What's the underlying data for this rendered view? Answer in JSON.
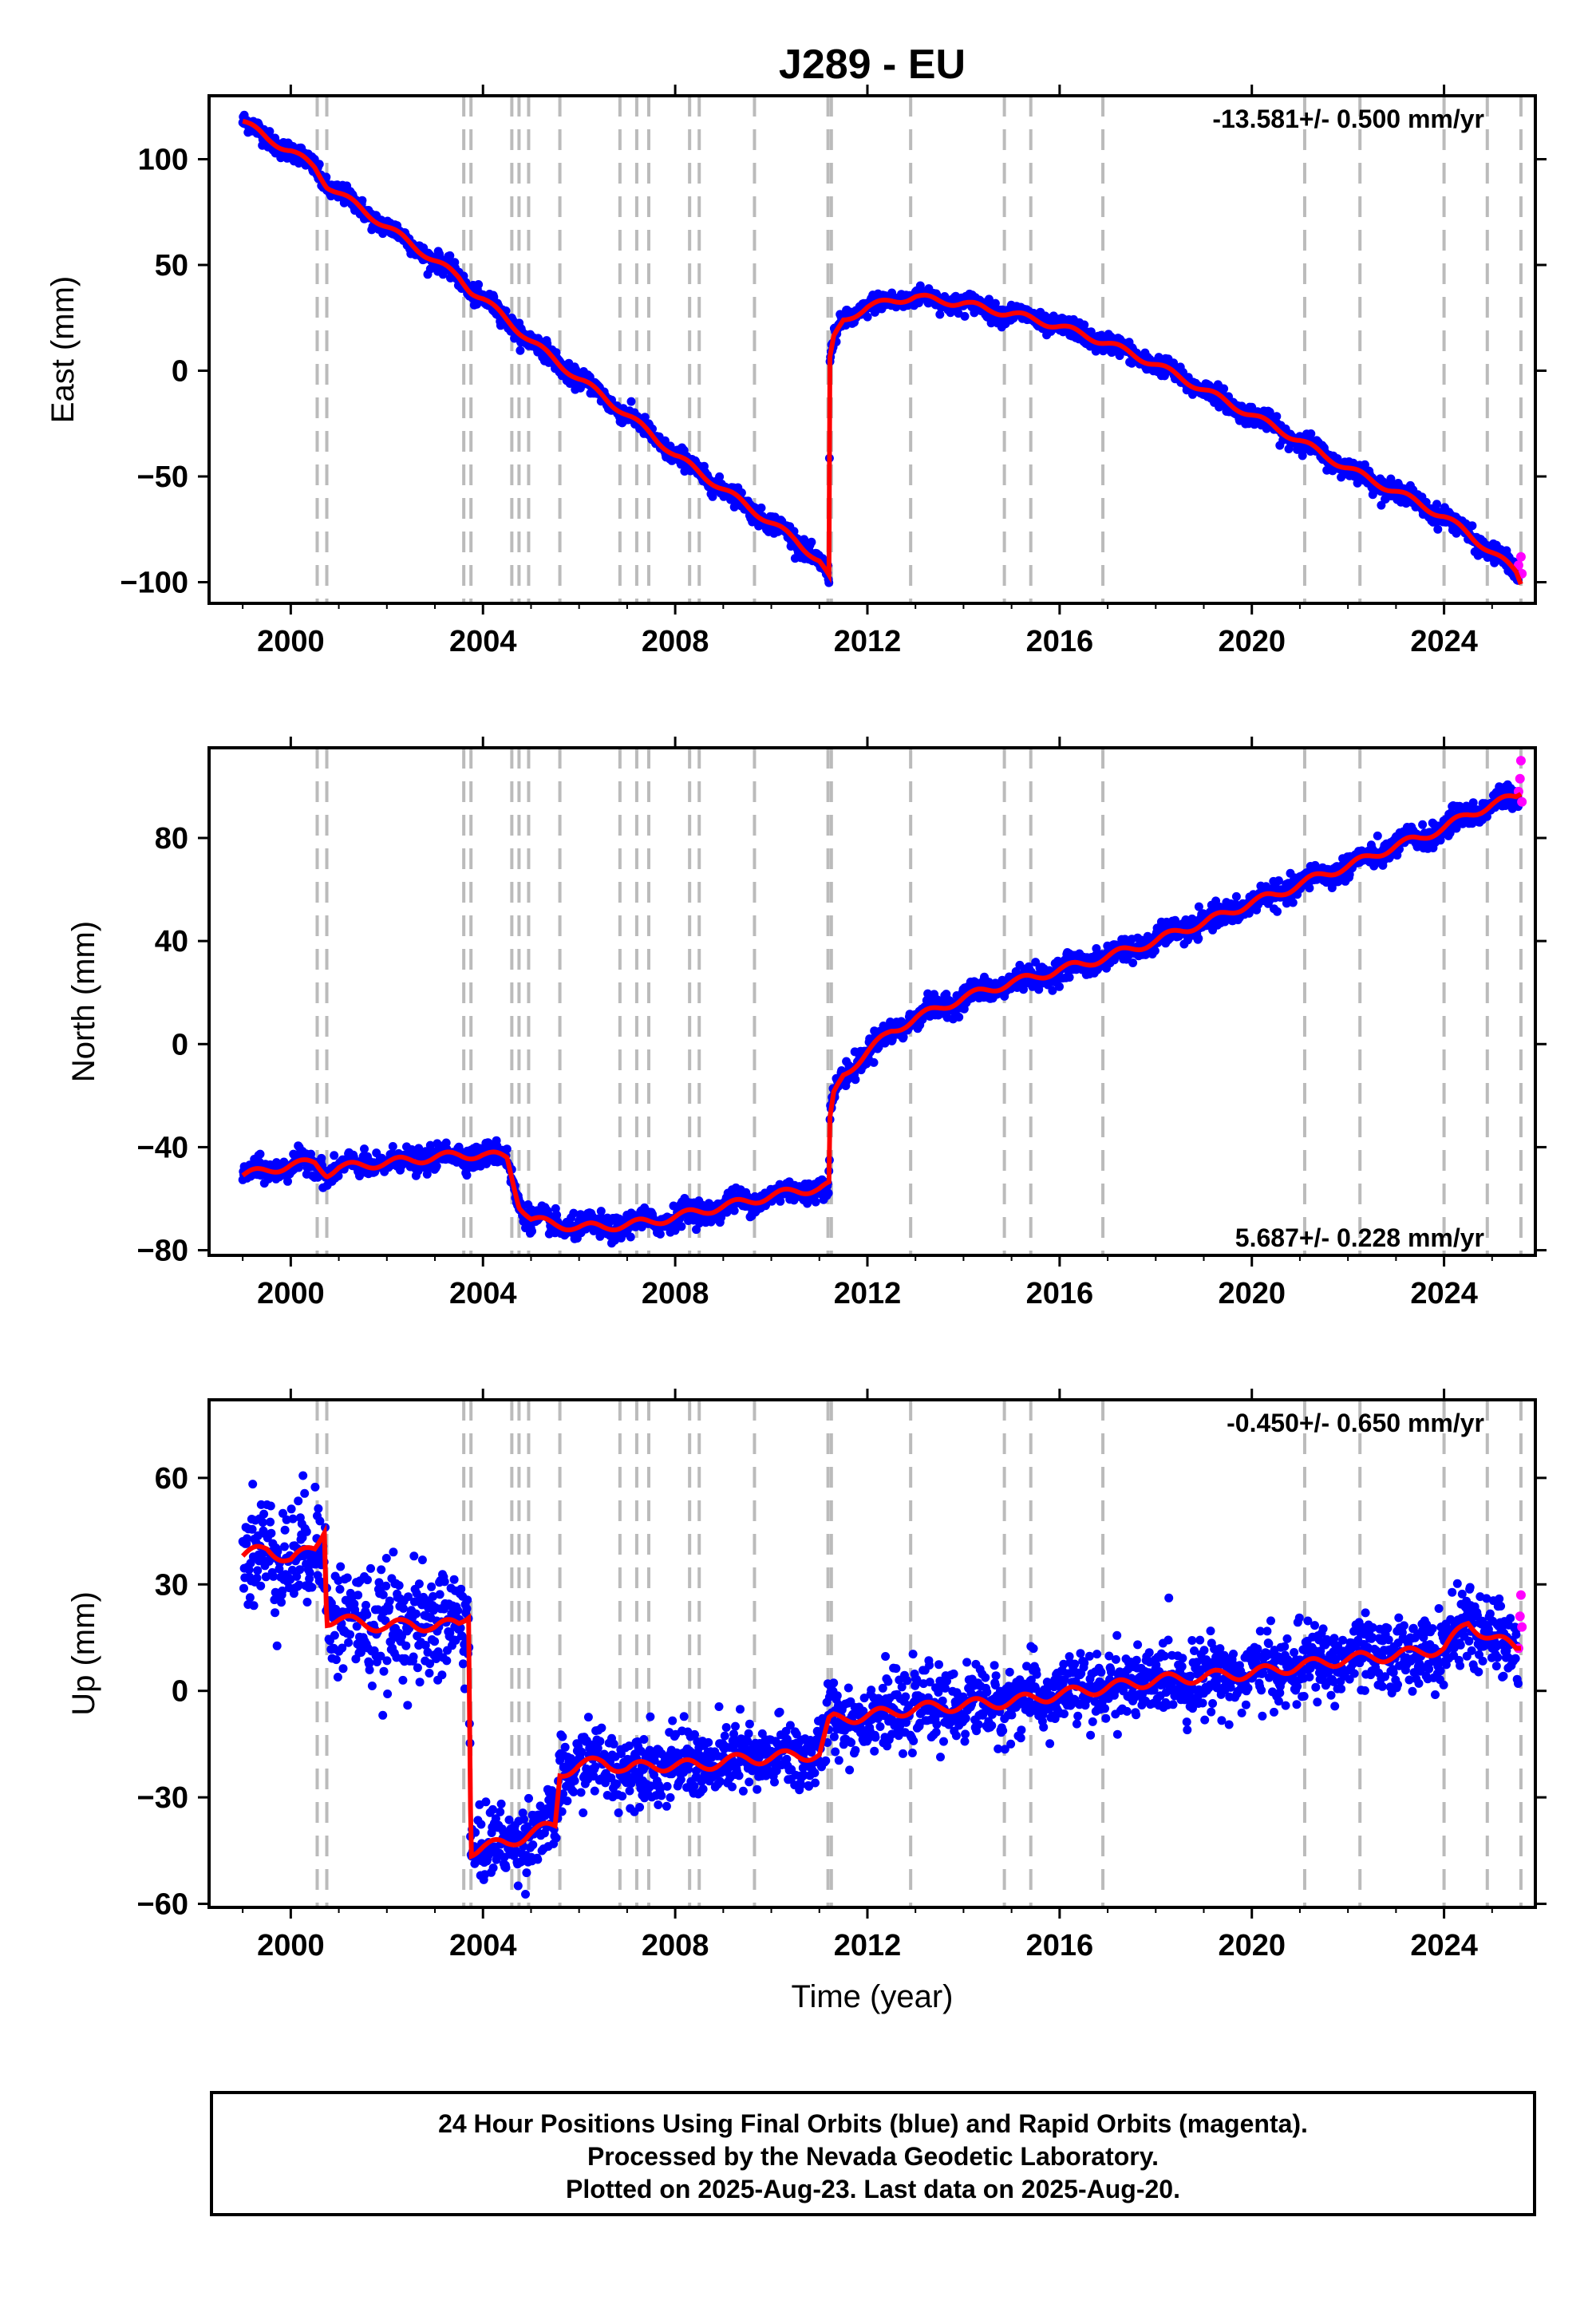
{
  "title": "J289 - EU",
  "xlabel": "Time (year)",
  "colors": {
    "final": "#0000ff",
    "rapid": "#ff00ff",
    "model": "#ff0000",
    "events": "#bbbbbb"
  },
  "events": [
    2000.55,
    2000.75,
    2003.6,
    2003.75,
    2004.6,
    2004.75,
    2004.95,
    2005.6,
    2006.85,
    2007.2,
    2007.45,
    2008.3,
    2008.5,
    2009.65,
    2011.18,
    2011.25,
    2012.9,
    2014.85,
    2015.4,
    2016.9,
    2021.1,
    2022.25,
    2024.0,
    2024.9,
    2025.6
  ],
  "footer": {
    "line1": "24 Hour Positions Using Final Orbits (blue) and Rapid Orbits (magenta).",
    "line2": "Processed by the Nevada Geodetic Laboratory.",
    "line3": "Plotted on 2025-Aug-23. Last data on 2025-Aug-20."
  },
  "chart_data": [
    {
      "type": "scatter",
      "ylabel": "East (mm)",
      "rate": "-13.581+/- 0.500 mm/yr",
      "xlim": [
        1998.3,
        2025.9
      ],
      "ylim": [
        -110,
        130
      ],
      "xticks": [
        2000,
        2004,
        2008,
        2012,
        2016,
        2020,
        2024
      ],
      "xtick_labels": [
        "2000",
        "2004",
        "2008",
        "2012",
        "2016",
        "2020",
        "2024"
      ],
      "yticks": [
        -100,
        -50,
        0,
        50,
        100
      ],
      "ytick_labels": [
        "−100",
        "−50",
        "0",
        "50",
        "100"
      ],
      "series": [
        {
          "x": [
            1999.0,
            1999.5,
            2000.0,
            2000.5,
            2000.75,
            2001.0,
            2001.5,
            2002.0,
            2002.5,
            2003.0,
            2003.5,
            2003.75,
            2004.0,
            2004.5,
            2005.0,
            2005.5,
            2006.0,
            2006.5,
            2007.0,
            2007.5,
            2008.0,
            2008.5,
            2009.0,
            2009.5,
            2010.0,
            2010.5,
            2011.0,
            2011.2,
            2011.22,
            2011.3,
            2011.5,
            2012.0,
            2012.5,
            2013.0,
            2013.5,
            2014.0,
            2014.5,
            2015.0,
            2015.5,
            2016.0,
            2016.5,
            2017.0,
            2017.5,
            2018.0,
            2018.5,
            2019.0,
            2019.5,
            2020.0,
            2020.5,
            2021.0,
            2021.5,
            2022.0,
            2022.5,
            2023.0,
            2023.5,
            2024.0,
            2024.5,
            2025.0,
            2025.5,
            2025.6
          ],
          "y": [
            118,
            110,
            104,
            96,
            88,
            84,
            76,
            68,
            60,
            52,
            44,
            38,
            34,
            24,
            14,
            5,
            -4,
            -12,
            -21,
            -30,
            -40,
            -48,
            -56,
            -64,
            -72,
            -80,
            -90,
            -98,
            5,
            15,
            24,
            30,
            33,
            35,
            33,
            32,
            29,
            27,
            24,
            21,
            17,
            13,
            8,
            3,
            -3,
            -9,
            -15,
            -21,
            -27,
            -33,
            -40,
            -46,
            -52,
            -57,
            -63,
            -69,
            -77,
            -86,
            -95,
            -100
          ]
        }
      ],
      "rapid": [
        [
          2025.55,
          -92
        ],
        [
          2025.6,
          -88
        ],
        [
          2025.62,
          -96
        ]
      ]
    },
    {
      "type": "scatter",
      "ylabel": "North (mm)",
      "rate": "5.687+/- 0.228 mm/yr",
      "xlim": [
        1998.3,
        2025.9
      ],
      "ylim": [
        -82,
        115
      ],
      "xticks": [
        2000,
        2004,
        2008,
        2012,
        2016,
        2020,
        2024
      ],
      "xtick_labels": [
        "2000",
        "2004",
        "2008",
        "2012",
        "2016",
        "2020",
        "2024"
      ],
      "yticks": [
        -80,
        -40,
        0,
        40,
        80
      ],
      "ytick_labels": [
        "−80",
        "−40",
        "0",
        "40",
        "80"
      ],
      "series": [
        {
          "x": [
            1999.0,
            1999.5,
            2000.0,
            2000.5,
            2000.75,
            2001.0,
            2001.5,
            2002.0,
            2002.5,
            2003.0,
            2003.5,
            2004.0,
            2004.5,
            2004.75,
            2005.0,
            2005.5,
            2006.0,
            2006.5,
            2007.0,
            2007.5,
            2008.0,
            2008.5,
            2009.0,
            2009.5,
            2010.0,
            2010.5,
            2011.0,
            2011.2,
            2011.22,
            2011.3,
            2011.5,
            2012.0,
            2012.5,
            2013.0,
            2013.5,
            2014.0,
            2014.5,
            2015.0,
            2015.5,
            2016.0,
            2016.5,
            2017.0,
            2017.5,
            2018.0,
            2018.5,
            2019.0,
            2019.5,
            2020.0,
            2020.5,
            2021.0,
            2021.5,
            2022.0,
            2022.5,
            2023.0,
            2023.5,
            2024.0,
            2024.5,
            2025.0,
            2025.5,
            2025.6
          ],
          "y": [
            -51,
            -49,
            -47,
            -46,
            -50,
            -48,
            -47,
            -46,
            -45,
            -44,
            -43,
            -43,
            -44,
            -62,
            -68,
            -70,
            -71,
            -71,
            -70,
            -69,
            -67,
            -65,
            -63,
            -61,
            -59,
            -57,
            -56,
            -55,
            -30,
            -20,
            -12,
            -3,
            5,
            10,
            14,
            18,
            21,
            24,
            26,
            29,
            31,
            34,
            37,
            40,
            44,
            47,
            51,
            55,
            58,
            62,
            66,
            69,
            73,
            77,
            80,
            84,
            89,
            93,
            96,
            98
          ]
        }
      ],
      "rapid": [
        [
          2025.55,
          98
        ],
        [
          2025.6,
          110
        ],
        [
          2025.62,
          94
        ],
        [
          2025.58,
          103
        ]
      ]
    },
    {
      "type": "scatter",
      "ylabel": "Up (mm)",
      "rate": "-0.450+/- 0.650 mm/yr",
      "xlim": [
        1998.3,
        2025.9
      ],
      "ylim": [
        -61,
        82
      ],
      "xticks": [
        2000,
        2004,
        2008,
        2012,
        2016,
        2020,
        2024
      ],
      "xtick_labels": [
        "2000",
        "2004",
        "2008",
        "2012",
        "2016",
        "2020",
        "2024"
      ],
      "yticks": [
        -60,
        -30,
        0,
        30,
        60
      ],
      "ytick_labels": [
        "−60",
        "−30",
        "0",
        "30",
        "60"
      ],
      "series": [
        {
          "x": [
            1999.0,
            1999.5,
            2000.0,
            2000.5,
            2000.7,
            2000.75,
            2001.0,
            2001.5,
            2002.0,
            2002.5,
            2003.0,
            2003.5,
            2003.7,
            2003.75,
            2004.0,
            2004.5,
            2005.0,
            2005.5,
            2005.6,
            2006.0,
            2006.5,
            2007.0,
            2007.5,
            2008.0,
            2008.5,
            2009.0,
            2009.5,
            2010.0,
            2010.5,
            2011.0,
            2011.2,
            2011.3,
            2012.0,
            2012.5,
            2013.0,
            2014.0,
            2015.0,
            2016.0,
            2017.0,
            2018.0,
            2019.0,
            2020.0,
            2021.0,
            2022.0,
            2023.0,
            2024.0,
            2024.5,
            2025.0,
            2025.5,
            2025.6
          ],
          "y": [
            38,
            40,
            37,
            40,
            46,
            20,
            20,
            19,
            18,
            19,
            18,
            19,
            22,
            -45,
            -44,
            -43,
            -40,
            -38,
            -23,
            -21,
            -20,
            -22,
            -21,
            -21,
            -21,
            -20,
            -19,
            -19,
            -18,
            -18,
            -9,
            -8,
            -7,
            -6,
            -5,
            -4,
            -3,
            -1,
            1,
            3,
            4,
            5,
            7,
            9,
            10,
            12,
            19,
            15,
            12,
            13
          ]
        }
      ],
      "rapid": [
        [
          2025.55,
          12
        ],
        [
          2025.6,
          27
        ],
        [
          2025.62,
          18
        ],
        [
          2025.58,
          21
        ]
      ]
    }
  ]
}
